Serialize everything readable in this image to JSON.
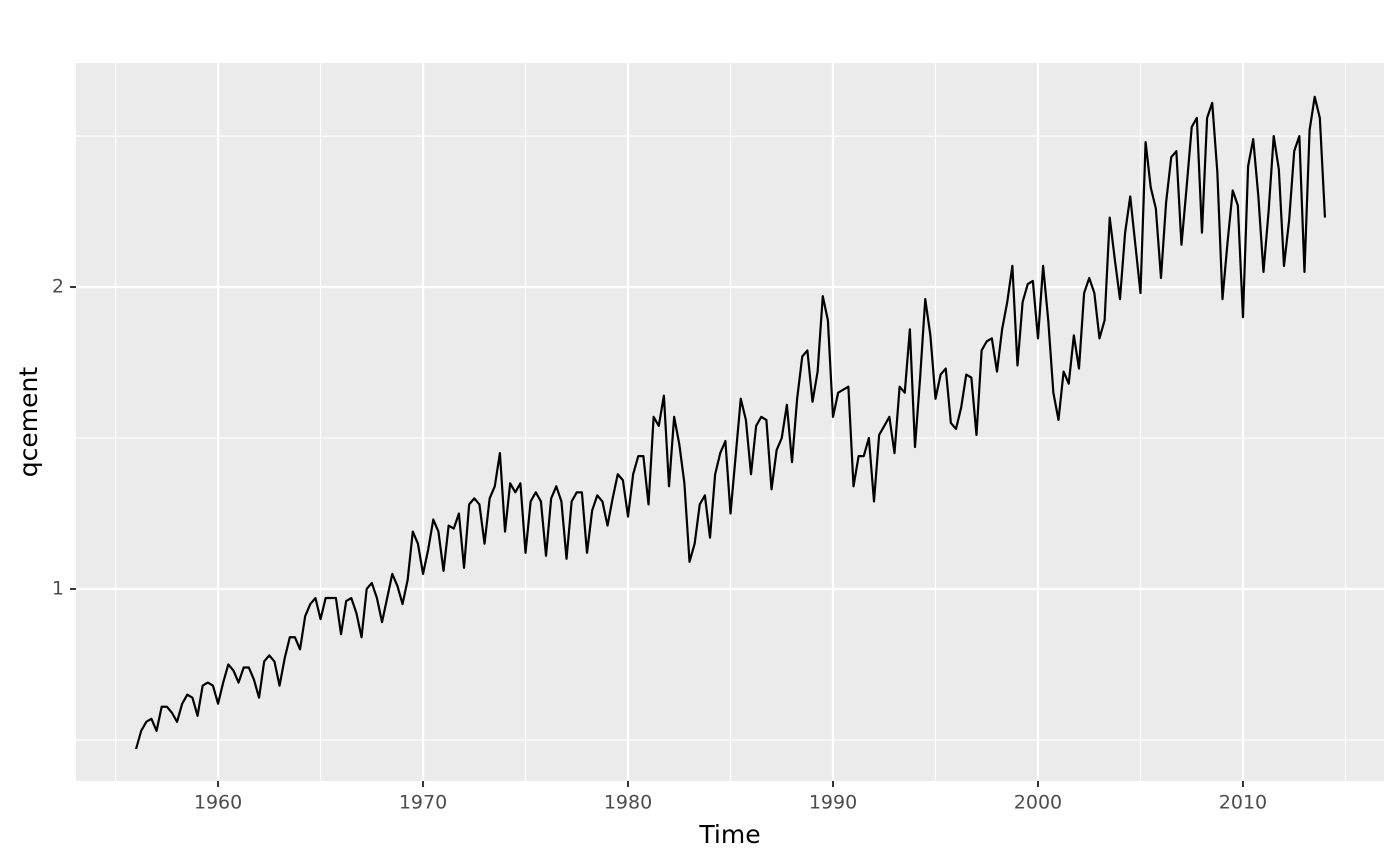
{
  "chart_data": {
    "type": "line",
    "x_label": "Time",
    "y_label": "qcement",
    "color": "#000000",
    "x": [
      1956,
      1956.25,
      1956.5,
      1956.75,
      1957,
      1957.25,
      1957.5,
      1957.75,
      1958,
      1958.25,
      1958.5,
      1958.75,
      1959,
      1959.25,
      1959.5,
      1959.75,
      1960,
      1960.25,
      1960.5,
      1960.75,
      1961,
      1961.25,
      1961.5,
      1961.75,
      1962,
      1962.25,
      1962.5,
      1962.75,
      1963,
      1963.25,
      1963.5,
      1963.75,
      1964,
      1964.25,
      1964.5,
      1964.75,
      1965,
      1965.25,
      1965.5,
      1965.75,
      1966,
      1966.25,
      1966.5,
      1966.75,
      1967,
      1967.25,
      1967.5,
      1967.75,
      1968,
      1968.25,
      1968.5,
      1968.75,
      1969,
      1969.25,
      1969.5,
      1969.75,
      1970,
      1970.25,
      1970.5,
      1970.75,
      1971,
      1971.25,
      1971.5,
      1971.75,
      1972,
      1972.25,
      1972.5,
      1972.75,
      1973,
      1973.25,
      1973.5,
      1973.75,
      1974,
      1974.25,
      1974.5,
      1974.75,
      1975,
      1975.25,
      1975.5,
      1975.75,
      1976,
      1976.25,
      1976.5,
      1976.75,
      1977,
      1977.25,
      1977.5,
      1977.75,
      1978,
      1978.25,
      1978.5,
      1978.75,
      1979,
      1979.25,
      1979.5,
      1979.75,
      1980,
      1980.25,
      1980.5,
      1980.75,
      1981,
      1981.25,
      1981.5,
      1981.75,
      1982,
      1982.25,
      1982.5,
      1982.75,
      1983,
      1983.25,
      1983.5,
      1983.75,
      1984,
      1984.25,
      1984.5,
      1984.75,
      1985,
      1985.25,
      1985.5,
      1985.75,
      1986,
      1986.25,
      1986.5,
      1986.75,
      1987,
      1987.25,
      1987.5,
      1987.75,
      1988,
      1988.25,
      1988.5,
      1988.75,
      1989,
      1989.25,
      1989.5,
      1989.75,
      1990,
      1990.25,
      1990.5,
      1990.75,
      1991,
      1991.25,
      1991.5,
      1991.75,
      1992,
      1992.25,
      1992.5,
      1992.75,
      1993,
      1993.25,
      1993.5,
      1993.75,
      1994,
      1994.25,
      1994.5,
      1994.75,
      1995,
      1995.25,
      1995.5,
      1995.75,
      1996,
      1996.25,
      1996.5,
      1996.75,
      1997,
      1997.25,
      1997.5,
      1997.75,
      1998,
      1998.25,
      1998.5,
      1998.75,
      1999,
      1999.25,
      1999.5,
      1999.75,
      2000,
      2000.25,
      2000.5,
      2000.75,
      2001,
      2001.25,
      2001.5,
      2001.75,
      2002,
      2002.25,
      2002.5,
      2002.75,
      2003,
      2003.25,
      2003.5,
      2003.75,
      2004,
      2004.25,
      2004.5,
      2004.75,
      2005,
      2005.25,
      2005.5,
      2005.75,
      2006,
      2006.25,
      2006.5,
      2006.75,
      2007,
      2007.25,
      2007.5,
      2007.75,
      2008,
      2008.25,
      2008.5,
      2008.75,
      2009,
      2009.25,
      2009.5,
      2009.75,
      2010,
      2010.25,
      2010.5,
      2010.75,
      2011,
      2011.25,
      2011.5,
      2011.75,
      2012,
      2012.25,
      2012.5,
      2012.75,
      2013,
      2013.25,
      2013.5,
      2013.75,
      2014
    ],
    "values": [
      0.47,
      0.53,
      0.56,
      0.57,
      0.53,
      0.61,
      0.61,
      0.59,
      0.56,
      0.62,
      0.65,
      0.64,
      0.58,
      0.68,
      0.69,
      0.68,
      0.62,
      0.69,
      0.75,
      0.73,
      0.69,
      0.74,
      0.74,
      0.7,
      0.64,
      0.76,
      0.78,
      0.76,
      0.68,
      0.77,
      0.84,
      0.84,
      0.8,
      0.91,
      0.95,
      0.97,
      0.9,
      0.97,
      0.97,
      0.97,
      0.85,
      0.96,
      0.97,
      0.92,
      0.84,
      1.0,
      1.02,
      0.97,
      0.89,
      0.97,
      1.05,
      1.01,
      0.95,
      1.03,
      1.19,
      1.15,
      1.05,
      1.13,
      1.23,
      1.19,
      1.06,
      1.21,
      1.2,
      1.25,
      1.07,
      1.28,
      1.3,
      1.28,
      1.15,
      1.3,
      1.34,
      1.45,
      1.19,
      1.35,
      1.32,
      1.35,
      1.12,
      1.29,
      1.32,
      1.29,
      1.11,
      1.3,
      1.34,
      1.29,
      1.1,
      1.29,
      1.32,
      1.32,
      1.12,
      1.26,
      1.31,
      1.29,
      1.21,
      1.3,
      1.38,
      1.36,
      1.24,
      1.38,
      1.44,
      1.44,
      1.28,
      1.57,
      1.54,
      1.64,
      1.34,
      1.57,
      1.48,
      1.35,
      1.09,
      1.15,
      1.28,
      1.31,
      1.17,
      1.38,
      1.45,
      1.49,
      1.25,
      1.44,
      1.63,
      1.56,
      1.38,
      1.54,
      1.57,
      1.56,
      1.33,
      1.46,
      1.5,
      1.61,
      1.42,
      1.63,
      1.77,
      1.79,
      1.62,
      1.72,
      1.97,
      1.89,
      1.57,
      1.65,
      1.66,
      1.67,
      1.34,
      1.44,
      1.44,
      1.5,
      1.29,
      1.51,
      1.54,
      1.57,
      1.45,
      1.67,
      1.65,
      1.86,
      1.47,
      1.7,
      1.96,
      1.84,
      1.63,
      1.71,
      1.73,
      1.55,
      1.53,
      1.6,
      1.71,
      1.7,
      1.51,
      1.79,
      1.82,
      1.83,
      1.72,
      1.86,
      1.95,
      2.07,
      1.74,
      1.95,
      2.01,
      2.02,
      1.83,
      2.07,
      1.89,
      1.65,
      1.56,
      1.72,
      1.68,
      1.84,
      1.73,
      1.98,
      2.03,
      1.98,
      1.83,
      1.89,
      2.23,
      2.09,
      1.96,
      2.18,
      2.3,
      2.14,
      1.98,
      2.48,
      2.33,
      2.26,
      2.03,
      2.28,
      2.43,
      2.45,
      2.14,
      2.33,
      2.53,
      2.56,
      2.18,
      2.56,
      2.61,
      2.38,
      1.96,
      2.15,
      2.32,
      2.27,
      1.9,
      2.4,
      2.49,
      2.3,
      2.05,
      2.25,
      2.5,
      2.39,
      2.07,
      2.22,
      2.45,
      2.5,
      2.05,
      2.52,
      2.63,
      2.56,
      2.23
    ],
    "xlim": [
      1953.07,
      2016.88
    ],
    "xticks": [
      1960,
      1970,
      1980,
      1990,
      2000,
      2010
    ],
    "x_minor_ticks": [
      1955,
      1965,
      1975,
      1985,
      1995,
      2005,
      2015
    ],
    "ylim": [
      0.364,
      2.742
    ],
    "yticks": [
      1,
      2
    ],
    "y_minor_ticks": [
      0.5,
      1.5,
      2.5
    ],
    "grid": true
  }
}
